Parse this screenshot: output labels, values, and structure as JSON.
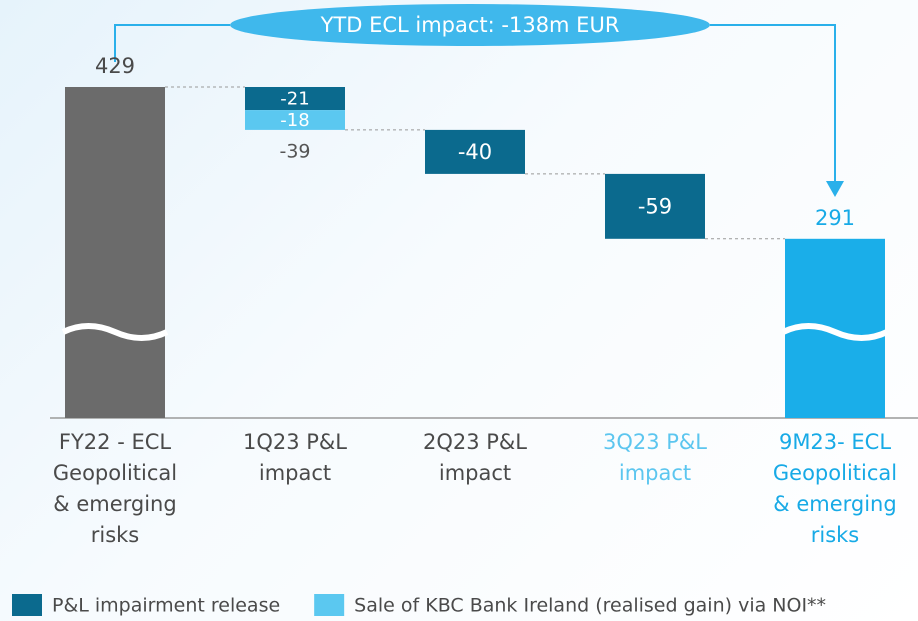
{
  "chart_data": {
    "type": "waterfall",
    "annotation": "YTD ECL impact: -138m EUR",
    "categories": [
      [
        "FY22 - ECL",
        "Geopolitical",
        "& emerging",
        "risks"
      ],
      [
        "1Q23 P&L",
        "impact"
      ],
      [
        "2Q23 P&L",
        "impact"
      ],
      [
        "3Q23 P&L",
        "impact"
      ],
      [
        "9M23- ECL",
        "Geopolitical",
        "& emerging",
        "risks"
      ]
    ],
    "category_colors": [
      "#4a4a4a",
      "#4a4a4a",
      "#4a4a4a",
      "#5cc6ef",
      "#17aae6"
    ],
    "totals": {
      "values": [
        429,
        null,
        null,
        null,
        291
      ],
      "colors": [
        "#6b6b6b",
        null,
        null,
        null,
        "#1aaee9"
      ]
    },
    "series": [
      {
        "name": "P&L impairment release",
        "color": "#0b6a8e",
        "values": [
          null,
          -21,
          -40,
          -59,
          null
        ]
      },
      {
        "name": "Sale of KBC Bank Ireland (realised gain) via NOI**",
        "color": "#5bc8f0",
        "values": [
          null,
          -18,
          null,
          null,
          null
        ]
      }
    ],
    "step_totals": [
      null,
      -39,
      null,
      null,
      null
    ]
  }
}
